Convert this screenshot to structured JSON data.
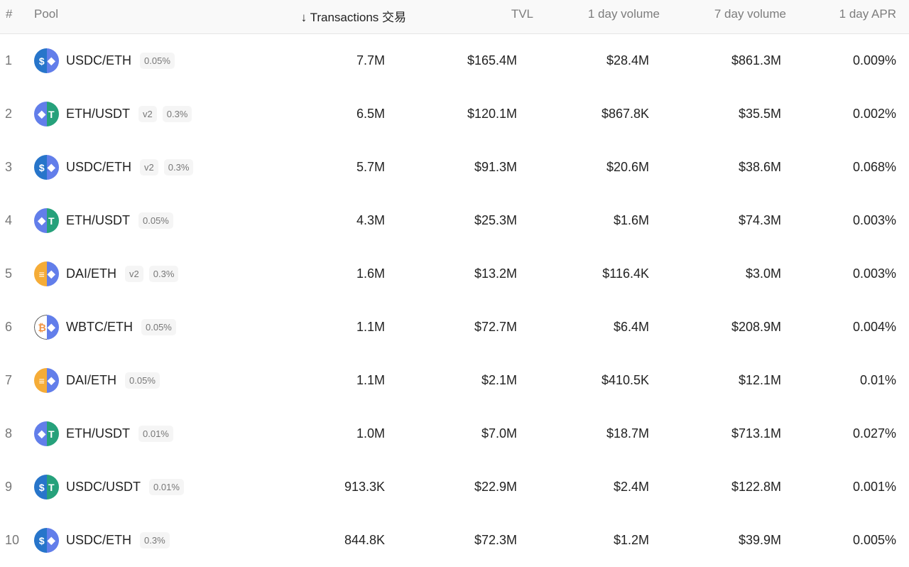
{
  "header": {
    "rank": "#",
    "pool": "Pool",
    "transactions": "↓ Transactions 交易",
    "tvl": "TVL",
    "day_volume": "1 day volume",
    "week_volume": "7 day volume",
    "day_apr": "1 day APR"
  },
  "colors": {
    "USDC": "#2775ca",
    "ETH": "#627eea",
    "USDT": "#26a17b",
    "DAI": "#f5ac37",
    "WBTC": "#ffffff"
  },
  "rows": [
    {
      "rank": "1",
      "pool": "USDC/ETH",
      "a": "USDC",
      "b": "ETH",
      "version": "",
      "fee": "0.05%",
      "tx": "7.7M",
      "tvl": "$165.4M",
      "vol1d": "$28.4M",
      "vol7d": "$861.3M",
      "apr": "0.009%"
    },
    {
      "rank": "2",
      "pool": "ETH/USDT",
      "a": "ETH",
      "b": "USDT",
      "version": "v2",
      "fee": "0.3%",
      "tx": "6.5M",
      "tvl": "$120.1M",
      "vol1d": "$867.8K",
      "vol7d": "$35.5M",
      "apr": "0.002%"
    },
    {
      "rank": "3",
      "pool": "USDC/ETH",
      "a": "USDC",
      "b": "ETH",
      "version": "v2",
      "fee": "0.3%",
      "tx": "5.7M",
      "tvl": "$91.3M",
      "vol1d": "$20.6M",
      "vol7d": "$38.6M",
      "apr": "0.068%"
    },
    {
      "rank": "4",
      "pool": "ETH/USDT",
      "a": "ETH",
      "b": "USDT",
      "version": "",
      "fee": "0.05%",
      "tx": "4.3M",
      "tvl": "$25.3M",
      "vol1d": "$1.6M",
      "vol7d": "$74.3M",
      "apr": "0.003%"
    },
    {
      "rank": "5",
      "pool": "DAI/ETH",
      "a": "DAI",
      "b": "ETH",
      "version": "v2",
      "fee": "0.3%",
      "tx": "1.6M",
      "tvl": "$13.2M",
      "vol1d": "$116.4K",
      "vol7d": "$3.0M",
      "apr": "0.003%"
    },
    {
      "rank": "6",
      "pool": "WBTC/ETH",
      "a": "WBTC",
      "b": "ETH",
      "version": "",
      "fee": "0.05%",
      "tx": "1.1M",
      "tvl": "$72.7M",
      "vol1d": "$6.4M",
      "vol7d": "$208.9M",
      "apr": "0.004%"
    },
    {
      "rank": "7",
      "pool": "DAI/ETH",
      "a": "DAI",
      "b": "ETH",
      "version": "",
      "fee": "0.05%",
      "tx": "1.1M",
      "tvl": "$2.1M",
      "vol1d": "$410.5K",
      "vol7d": "$12.1M",
      "apr": "0.01%"
    },
    {
      "rank": "8",
      "pool": "ETH/USDT",
      "a": "ETH",
      "b": "USDT",
      "version": "",
      "fee": "0.01%",
      "tx": "1.0M",
      "tvl": "$7.0M",
      "vol1d": "$18.7M",
      "vol7d": "$713.1M",
      "apr": "0.027%"
    },
    {
      "rank": "9",
      "pool": "USDC/USDT",
      "a": "USDC",
      "b": "USDT",
      "version": "",
      "fee": "0.01%",
      "tx": "913.3K",
      "tvl": "$22.9M",
      "vol1d": "$2.4M",
      "vol7d": "$122.8M",
      "apr": "0.001%"
    },
    {
      "rank": "10",
      "pool": "USDC/ETH",
      "a": "USDC",
      "b": "ETH",
      "version": "",
      "fee": "0.3%",
      "tx": "844.8K",
      "tvl": "$72.3M",
      "vol1d": "$1.2M",
      "vol7d": "$39.9M",
      "apr": "0.005%"
    }
  ]
}
